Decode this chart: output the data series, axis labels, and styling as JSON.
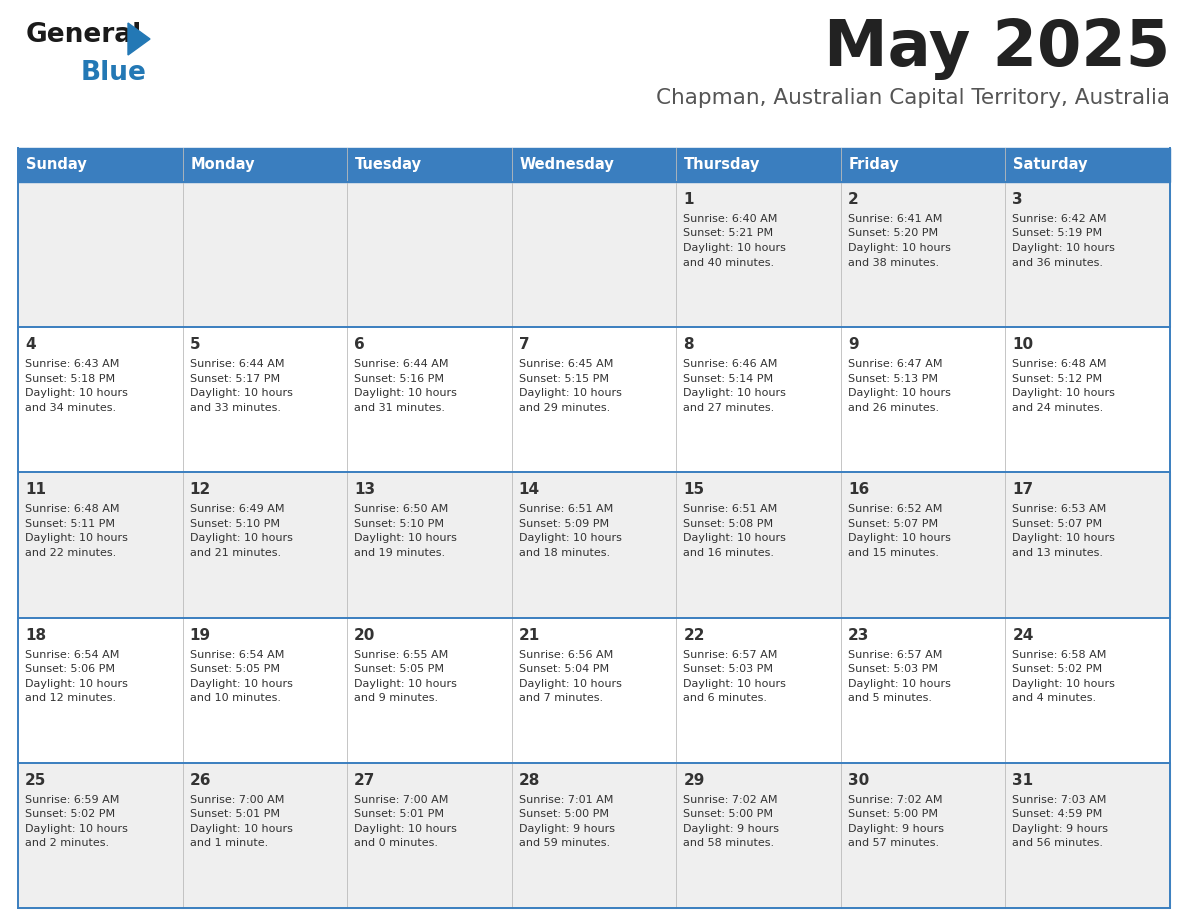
{
  "title_month": "May 2025",
  "subtitle": "Chapman, Australian Capital Territory, Australia",
  "days_of_week": [
    "Sunday",
    "Monday",
    "Tuesday",
    "Wednesday",
    "Thursday",
    "Friday",
    "Saturday"
  ],
  "header_bg": "#3a7ebf",
  "header_text": "#ffffff",
  "row_bg_odd": "#efefef",
  "row_bg_even": "#ffffff",
  "cell_text_color": "#333333",
  "border_color": "#3a7ebf",
  "title_color": "#222222",
  "subtitle_color": "#555555",
  "calendar_data": [
    [
      {
        "day": "",
        "sunrise": "",
        "sunset": "",
        "daylight": ""
      },
      {
        "day": "",
        "sunrise": "",
        "sunset": "",
        "daylight": ""
      },
      {
        "day": "",
        "sunrise": "",
        "sunset": "",
        "daylight": ""
      },
      {
        "day": "",
        "sunrise": "",
        "sunset": "",
        "daylight": ""
      },
      {
        "day": "1",
        "sunrise": "6:40 AM",
        "sunset": "5:21 PM",
        "daylight": "10 hours and 40 minutes."
      },
      {
        "day": "2",
        "sunrise": "6:41 AM",
        "sunset": "5:20 PM",
        "daylight": "10 hours and 38 minutes."
      },
      {
        "day": "3",
        "sunrise": "6:42 AM",
        "sunset": "5:19 PM",
        "daylight": "10 hours and 36 minutes."
      }
    ],
    [
      {
        "day": "4",
        "sunrise": "6:43 AM",
        "sunset": "5:18 PM",
        "daylight": "10 hours and 34 minutes."
      },
      {
        "day": "5",
        "sunrise": "6:44 AM",
        "sunset": "5:17 PM",
        "daylight": "10 hours and 33 minutes."
      },
      {
        "day": "6",
        "sunrise": "6:44 AM",
        "sunset": "5:16 PM",
        "daylight": "10 hours and 31 minutes."
      },
      {
        "day": "7",
        "sunrise": "6:45 AM",
        "sunset": "5:15 PM",
        "daylight": "10 hours and 29 minutes."
      },
      {
        "day": "8",
        "sunrise": "6:46 AM",
        "sunset": "5:14 PM",
        "daylight": "10 hours and 27 minutes."
      },
      {
        "day": "9",
        "sunrise": "6:47 AM",
        "sunset": "5:13 PM",
        "daylight": "10 hours and 26 minutes."
      },
      {
        "day": "10",
        "sunrise": "6:48 AM",
        "sunset": "5:12 PM",
        "daylight": "10 hours and 24 minutes."
      }
    ],
    [
      {
        "day": "11",
        "sunrise": "6:48 AM",
        "sunset": "5:11 PM",
        "daylight": "10 hours and 22 minutes."
      },
      {
        "day": "12",
        "sunrise": "6:49 AM",
        "sunset": "5:10 PM",
        "daylight": "10 hours and 21 minutes."
      },
      {
        "day": "13",
        "sunrise": "6:50 AM",
        "sunset": "5:10 PM",
        "daylight": "10 hours and 19 minutes."
      },
      {
        "day": "14",
        "sunrise": "6:51 AM",
        "sunset": "5:09 PM",
        "daylight": "10 hours and 18 minutes."
      },
      {
        "day": "15",
        "sunrise": "6:51 AM",
        "sunset": "5:08 PM",
        "daylight": "10 hours and 16 minutes."
      },
      {
        "day": "16",
        "sunrise": "6:52 AM",
        "sunset": "5:07 PM",
        "daylight": "10 hours and 15 minutes."
      },
      {
        "day": "17",
        "sunrise": "6:53 AM",
        "sunset": "5:07 PM",
        "daylight": "10 hours and 13 minutes."
      }
    ],
    [
      {
        "day": "18",
        "sunrise": "6:54 AM",
        "sunset": "5:06 PM",
        "daylight": "10 hours and 12 minutes."
      },
      {
        "day": "19",
        "sunrise": "6:54 AM",
        "sunset": "5:05 PM",
        "daylight": "10 hours and 10 minutes."
      },
      {
        "day": "20",
        "sunrise": "6:55 AM",
        "sunset": "5:05 PM",
        "daylight": "10 hours and 9 minutes."
      },
      {
        "day": "21",
        "sunrise": "6:56 AM",
        "sunset": "5:04 PM",
        "daylight": "10 hours and 7 minutes."
      },
      {
        "day": "22",
        "sunrise": "6:57 AM",
        "sunset": "5:03 PM",
        "daylight": "10 hours and 6 minutes."
      },
      {
        "day": "23",
        "sunrise": "6:57 AM",
        "sunset": "5:03 PM",
        "daylight": "10 hours and 5 minutes."
      },
      {
        "day": "24",
        "sunrise": "6:58 AM",
        "sunset": "5:02 PM",
        "daylight": "10 hours and 4 minutes."
      }
    ],
    [
      {
        "day": "25",
        "sunrise": "6:59 AM",
        "sunset": "5:02 PM",
        "daylight": "10 hours and 2 minutes."
      },
      {
        "day": "26",
        "sunrise": "7:00 AM",
        "sunset": "5:01 PM",
        "daylight": "10 hours and 1 minute."
      },
      {
        "day": "27",
        "sunrise": "7:00 AM",
        "sunset": "5:01 PM",
        "daylight": "10 hours and 0 minutes."
      },
      {
        "day": "28",
        "sunrise": "7:01 AM",
        "sunset": "5:00 PM",
        "daylight": "9 hours and 59 minutes."
      },
      {
        "day": "29",
        "sunrise": "7:02 AM",
        "sunset": "5:00 PM",
        "daylight": "9 hours and 58 minutes."
      },
      {
        "day": "30",
        "sunrise": "7:02 AM",
        "sunset": "5:00 PM",
        "daylight": "9 hours and 57 minutes."
      },
      {
        "day": "31",
        "sunrise": "7:03 AM",
        "sunset": "4:59 PM",
        "daylight": "9 hours and 56 minutes."
      }
    ]
  ],
  "logo_text_general": "General",
  "logo_text_blue": "Blue",
  "logo_blue": "#2378b5"
}
